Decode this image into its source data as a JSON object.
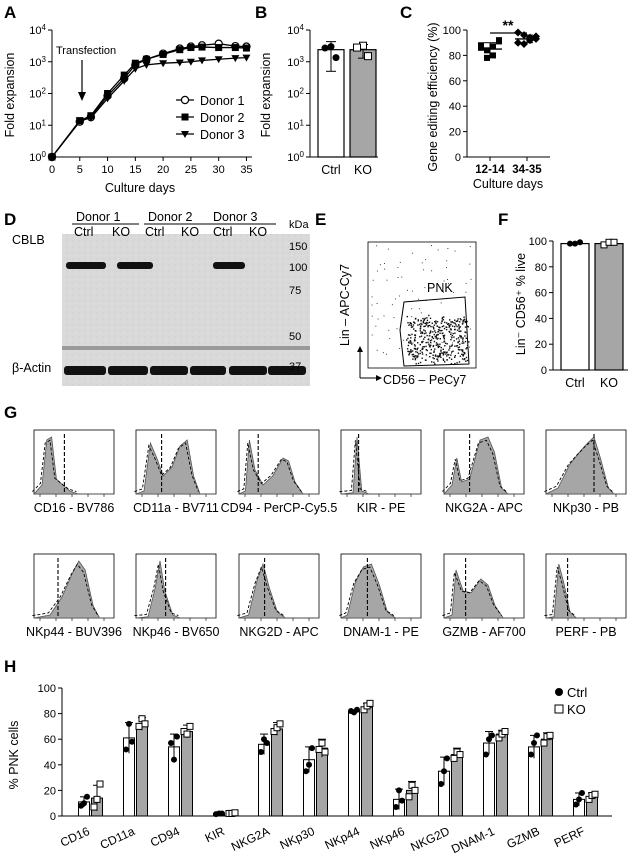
{
  "panels": {
    "A": {
      "label": "A",
      "xlabel": "Culture days",
      "ylabel": "Fold expansion",
      "annotation": "Transfection",
      "xticks": [
        "0",
        "5",
        "10",
        "15",
        "20",
        "25",
        "30",
        "35"
      ],
      "yticks": [
        "10^0",
        "10^1",
        "10^2",
        "10^3",
        "10^4"
      ]
    },
    "B": {
      "label": "B",
      "ylabel": "Fold expansion",
      "yticks": [
        "10^0",
        "10^1",
        "10^2",
        "10^3",
        "10^4"
      ],
      "categories": [
        "Ctrl",
        "KO"
      ]
    },
    "C": {
      "label": "C",
      "ylabel": "Gene editing efficiency (%)",
      "xlabel": "Culture days",
      "categories": [
        "12-14",
        "34-35"
      ],
      "yticks": [
        "0",
        "20",
        "40",
        "60",
        "80",
        "100"
      ],
      "sig": "**"
    },
    "D": {
      "label": "D",
      "donors": [
        "Donor 1",
        "Donor 2",
        "Donor 3"
      ],
      "lanes": [
        "Ctrl",
        "KO",
        "Ctrl",
        "KO",
        "Ctrl",
        "KO"
      ],
      "kda_title": "kDa",
      "kda": [
        "150",
        "100",
        "75",
        "50",
        "37"
      ],
      "proteins": [
        "CBLB",
        "β-Actin"
      ]
    },
    "E": {
      "label": "E",
      "gate": "PNK",
      "xlabel": "CD56 – PeCy7",
      "ylabel": "Lin – APC-Cy7"
    },
    "F": {
      "label": "F",
      "ylabel": "Lin⁻ CD56⁺ % live",
      "categories": [
        "Ctrl",
        "KO"
      ],
      "yticks": [
        "0",
        "20",
        "40",
        "60",
        "80",
        "100"
      ]
    },
    "G": {
      "label": "G",
      "markers": [
        "CD16 - BV786",
        "CD11a - BV711",
        "CD94 - PerCP-Cy5.5",
        "KIR - PE",
        "NKG2A - APC",
        "NKp30 - PB",
        "NKp44 - BUV396",
        "NKp46 - BV650",
        "NKG2D - APC",
        "DNAM-1 - PE",
        "GZMB - AF700",
        "PERF - PB"
      ]
    },
    "H": {
      "label": "H",
      "legend": [
        "Ctrl",
        "KO"
      ]
    }
  },
  "colors": {
    "ko": "#a6a6a6",
    "ctrl": "#ffffff",
    "hist": "#a6a6a6",
    "ink": "#000000"
  },
  "chart_data": [
    {
      "panel": "A",
      "type": "line",
      "title": "",
      "xlabel": "Culture days",
      "ylabel": "Fold expansion",
      "yscale": "log",
      "xlim": [
        0,
        36
      ],
      "ylim": [
        1,
        10000
      ],
      "series": [
        {
          "name": "Donor 1",
          "marker": "open-circle",
          "x": [
            0,
            5,
            7,
            10,
            13,
            15,
            17,
            20,
            23,
            25,
            27,
            30,
            33,
            35
          ],
          "y": [
            1,
            13,
            18,
            85,
            300,
            800,
            1200,
            1800,
            2600,
            3000,
            3300,
            3700,
            3100,
            3000
          ]
        },
        {
          "name": "Donor 2",
          "marker": "filled-square",
          "x": [
            0,
            5,
            7,
            10,
            13,
            15,
            17,
            20,
            23,
            25,
            27,
            30,
            33,
            35
          ],
          "y": [
            1,
            14,
            20,
            100,
            380,
            900,
            1200,
            1700,
            2400,
            2800,
            2900,
            2800,
            2800,
            2700
          ]
        },
        {
          "name": "Donor 3",
          "marker": "filled-triangle-down",
          "x": [
            0,
            5,
            7,
            10,
            13,
            15,
            17,
            20,
            23,
            25,
            27,
            30,
            33,
            35
          ],
          "y": [
            1,
            14,
            17,
            70,
            250,
            600,
            800,
            900,
            950,
            1000,
            1100,
            1200,
            1300,
            1350
          ]
        }
      ]
    },
    {
      "panel": "B",
      "type": "bar",
      "yscale": "log",
      "ylim": [
        1,
        10000
      ],
      "ylabel": "Fold expansion",
      "categories": [
        "Ctrl",
        "KO"
      ],
      "values": [
        2400,
        2400
      ],
      "points": [
        [
          3000,
          2700,
          1350
        ],
        [
          3200,
          2800,
          1500
        ]
      ],
      "errors": [
        1900,
        1100
      ]
    },
    {
      "panel": "C",
      "type": "scatter",
      "ylim": [
        0,
        100
      ],
      "xlabel": "Culture days",
      "ylabel": "Gene editing efficiency (%)",
      "categories": [
        "12-14",
        "34-35"
      ],
      "means": [
        85,
        93
      ],
      "errors": [
        5,
        3
      ],
      "points": [
        [
          88,
          78,
          80,
          92,
          86,
          84,
          87,
          91
        ],
        [
          90,
          96,
          92,
          95,
          98,
          89,
          94,
          93
        ]
      ]
    },
    {
      "panel": "F",
      "type": "bar",
      "ylim": [
        0,
        100
      ],
      "ylabel": "Lin⁻ CD56⁺ % live",
      "categories": [
        "Ctrl",
        "KO"
      ],
      "values": [
        98,
        98
      ],
      "points": [
        [
          98,
          98,
          99
        ],
        [
          97,
          99,
          99
        ]
      ]
    },
    {
      "panel": "H",
      "type": "bar",
      "ylim": [
        0,
        100
      ],
      "ylabel": "% PNK cells",
      "yticks": [
        "0",
        "20",
        "40",
        "60",
        "80",
        "100"
      ],
      "categories": [
        "CD16",
        "CD11a",
        "CD94",
        "KIR",
        "NKG2A",
        "NKp30",
        "NKp44",
        "NKp46",
        "NKG2D",
        "DNAM-1",
        "GZMB",
        "PERF"
      ],
      "series": [
        {
          "name": "Ctrl",
          "values": [
            11,
            61,
            54,
            2,
            56,
            44,
            82,
            13,
            35,
            57,
            54,
            13
          ],
          "errors": [
            4,
            12,
            10,
            0.5,
            8,
            10,
            1,
            8,
            11,
            9,
            9,
            5
          ],
          "points": [
            [
              8,
              10,
              15
            ],
            [
              52,
              72,
              58
            ],
            [
              57,
              44,
              62
            ],
            [
              1.5,
              2,
              2
            ],
            [
              50,
              60,
              57
            ],
            [
              35,
              40,
              53
            ],
            [
              82,
              81,
              83
            ],
            [
              7,
              20,
              12
            ],
            [
              25,
              35,
              45
            ],
            [
              48,
              60,
              63
            ],
            [
              48,
              57,
              63
            ],
            [
              9,
              13,
              18
            ]
          ]
        },
        {
          "name": "KO",
          "values": [
            14,
            72,
            66,
            2,
            68,
            53,
            85,
            20,
            48,
            64,
            60,
            15
          ],
          "errors": [
            10,
            5,
            5,
            0.5,
            5,
            7,
            3,
            7,
            5,
            3,
            5,
            3
          ],
          "points": [
            [
              7,
              13,
              25
            ],
            [
              70,
              76,
              72
            ],
            [
              66,
              64,
              70
            ],
            [
              2,
              2,
              2.5
            ],
            [
              66,
              69,
              72
            ],
            [
              52,
              57,
              50
            ],
            [
              83,
              86,
              88
            ],
            [
              15,
              24,
              20
            ],
            [
              45,
              50,
              48
            ],
            [
              61,
              64,
              66
            ],
            [
              57,
              62,
              63
            ],
            [
              13,
              16,
              17
            ]
          ]
        }
      ]
    }
  ]
}
